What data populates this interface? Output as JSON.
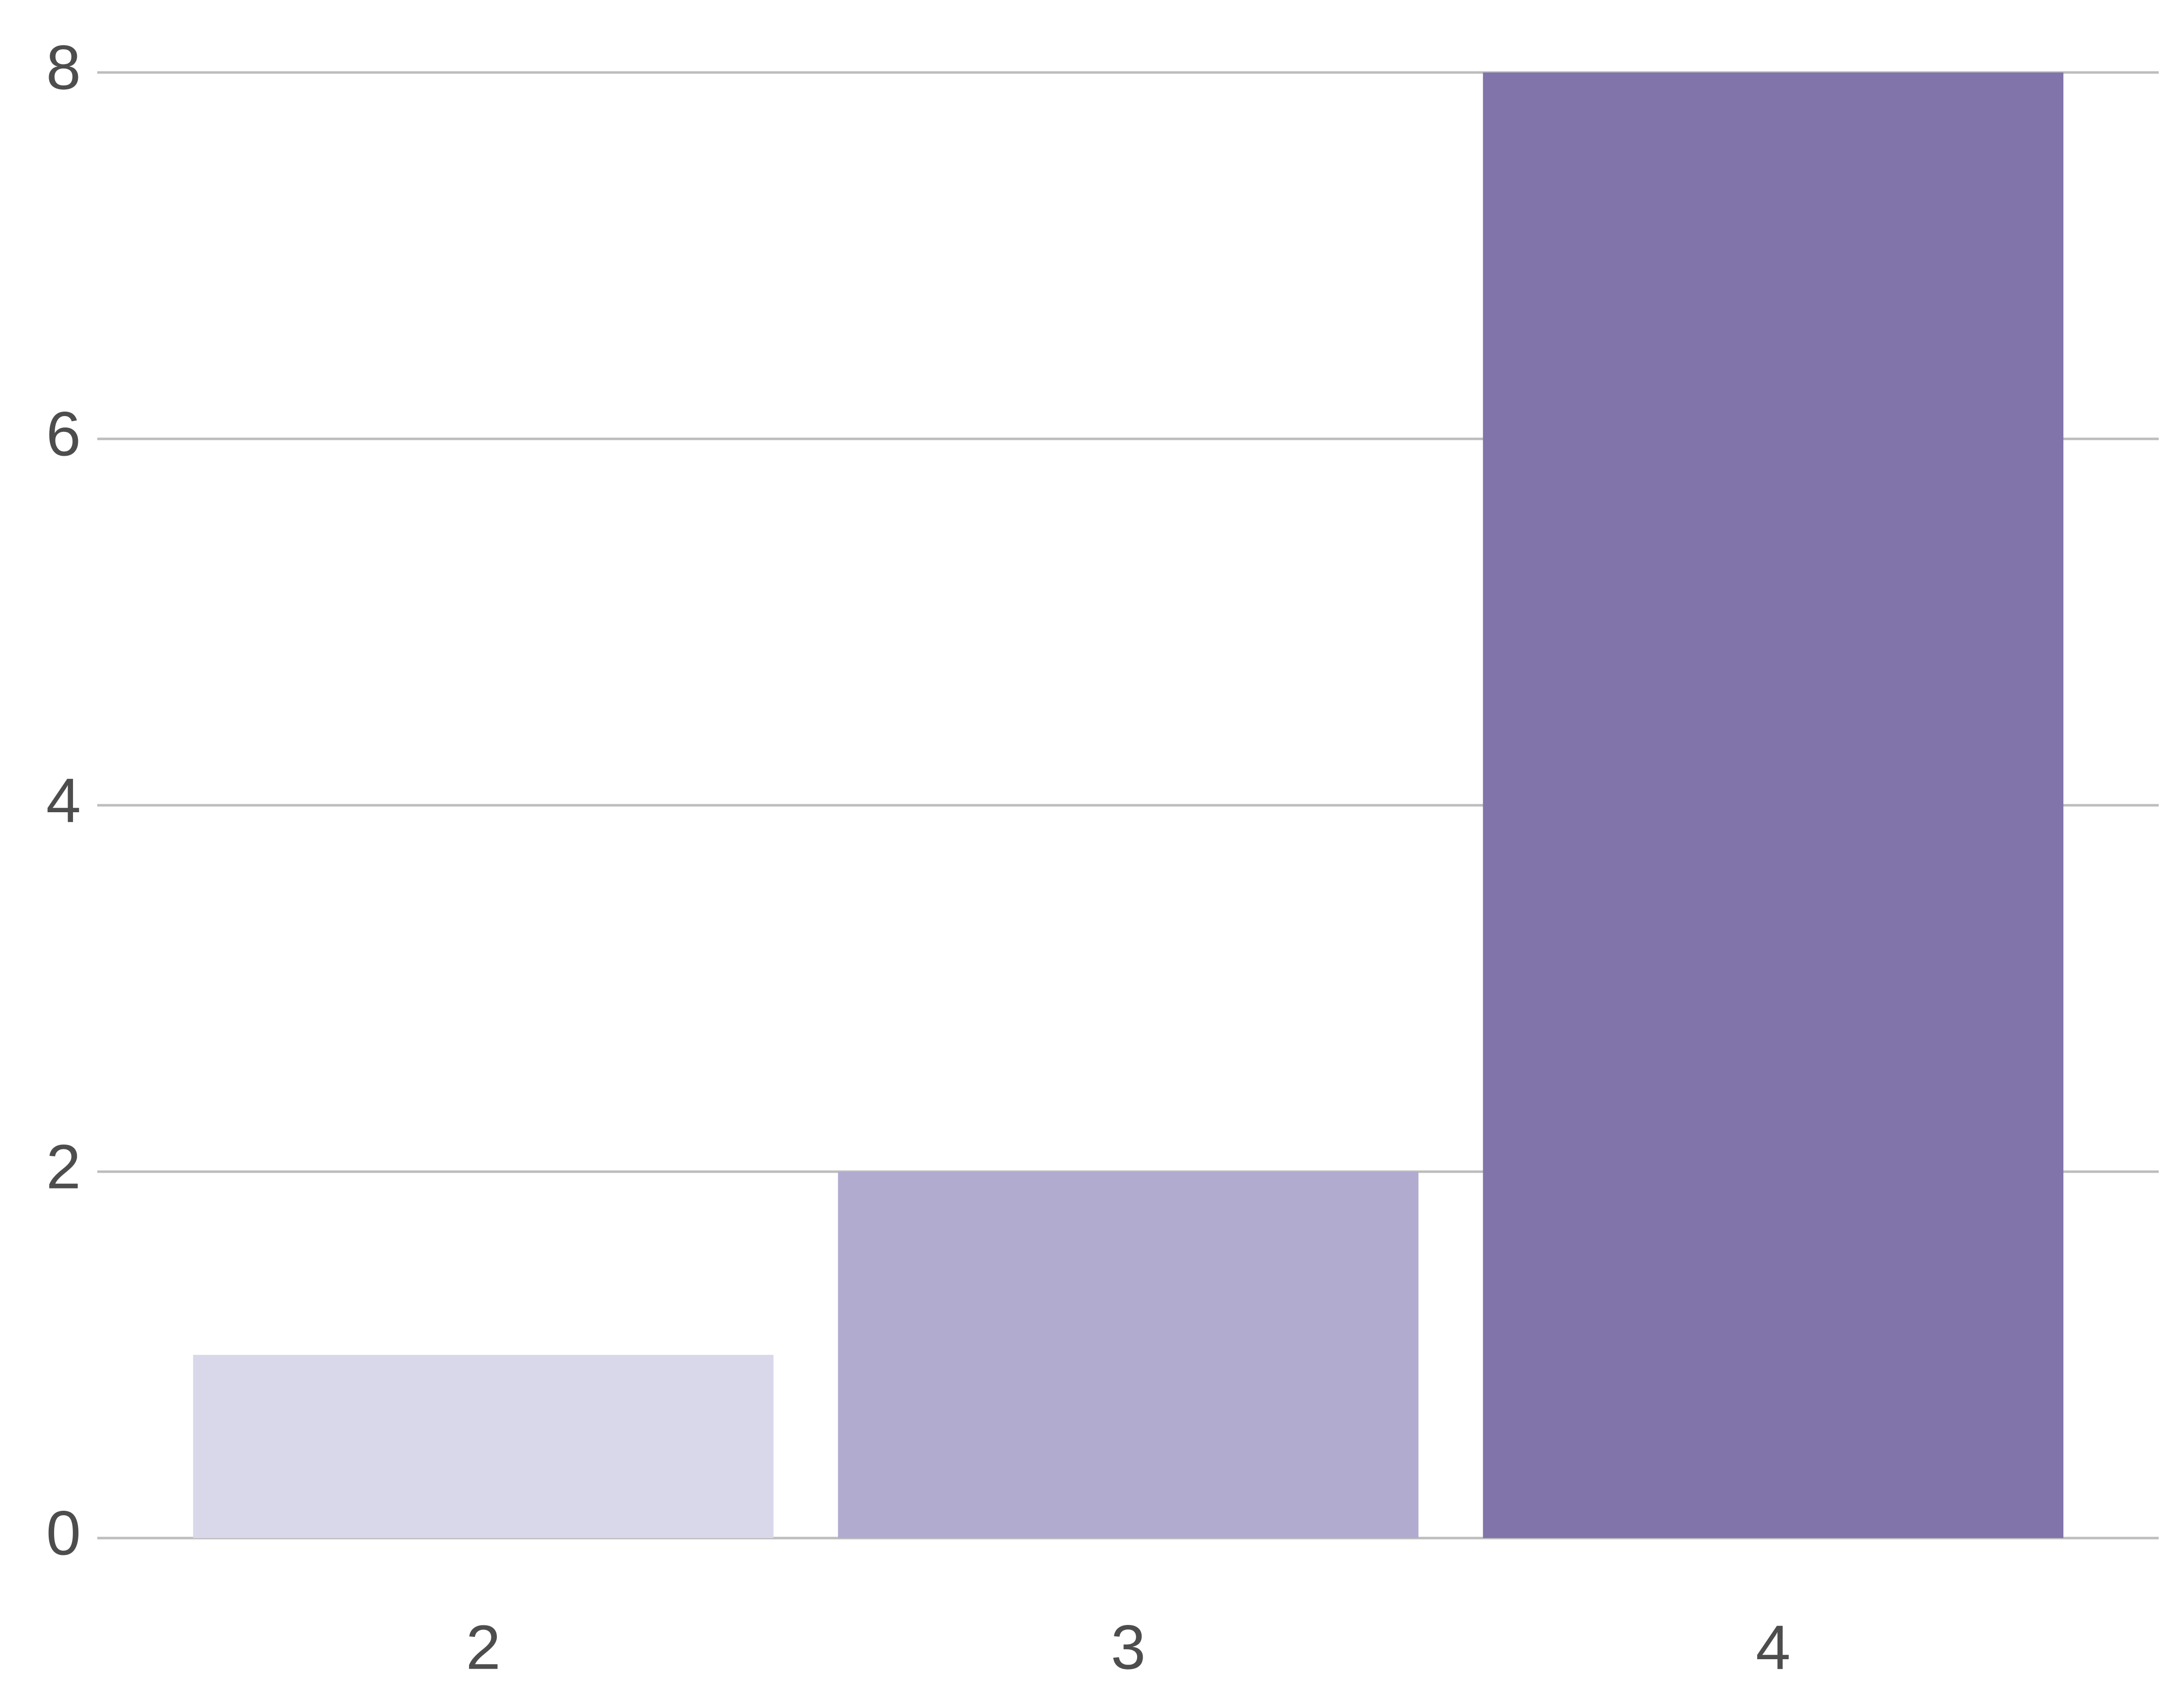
{
  "chart_data": {
    "type": "bar",
    "categories": [
      "2",
      "3",
      "4"
    ],
    "values": [
      1,
      2,
      8
    ],
    "colors": [
      "#d8d8ea",
      "#b1abd0",
      "#8174aa"
    ],
    "ylim": [
      0,
      8
    ],
    "yticks": [
      0,
      2,
      4,
      6,
      8
    ],
    "grid": true
  }
}
